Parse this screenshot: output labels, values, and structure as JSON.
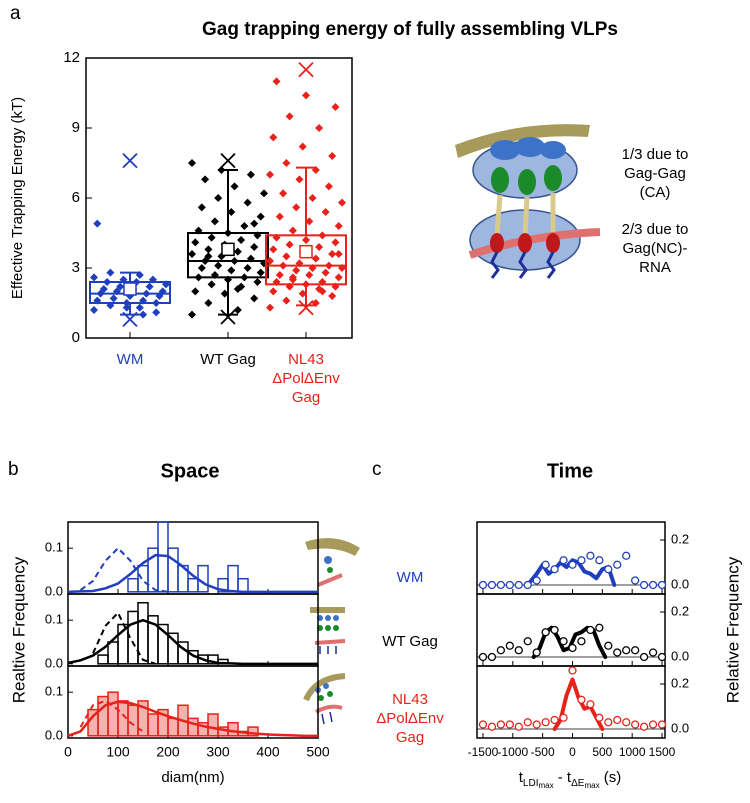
{
  "chart_data": [
    {
      "type": "box",
      "panel": "a",
      "title": "Gag trapping energy of fully assembling VLPs",
      "ylabel": "Effective Trapping Energy (kT)",
      "ylim": [
        0,
        12
      ],
      "yticks": [
        0,
        3,
        6,
        9,
        12
      ],
      "categories": [
        "WM",
        "WT Gag",
        "NL43\nΔPolΔEnv\nGag"
      ],
      "colors": [
        "#1f3fbf",
        "#000000",
        "#e8211a"
      ],
      "boxes": [
        {
          "whisker_low": 1.0,
          "q1": 1.5,
          "median": 1.9,
          "q3": 2.4,
          "whisker_high": 2.8,
          "mean": 2.1,
          "min": 0.8,
          "max": 7.6,
          "points": [
            1.2,
            1.3,
            1.4,
            1.5,
            1.5,
            1.6,
            1.6,
            1.7,
            1.8,
            1.8,
            1.9,
            1.9,
            2.0,
            2.0,
            2.1,
            2.1,
            2.2,
            2.2,
            2.3,
            2.4,
            2.4,
            2.5,
            2.5,
            2.6,
            2.7,
            2.8,
            1.1,
            1.3,
            4.9,
            1.0
          ]
        },
        {
          "whisker_low": 1.0,
          "q1": 2.6,
          "median": 3.3,
          "q3": 4.5,
          "whisker_high": 7.2,
          "mean": 3.8,
          "min": 0.9,
          "max": 7.6,
          "points": [
            1.0,
            1.2,
            1.5,
            1.7,
            1.9,
            2.0,
            2.2,
            2.3,
            2.4,
            2.5,
            2.6,
            2.6,
            2.7,
            2.8,
            2.9,
            3.0,
            3.0,
            3.1,
            3.2,
            3.3,
            3.3,
            3.4,
            3.5,
            3.6,
            3.7,
            3.8,
            3.9,
            4.0,
            4.1,
            4.2,
            4.3,
            4.4,
            4.5,
            4.6,
            4.8,
            5.0,
            5.2,
            5.4,
            5.6,
            5.8,
            6.0,
            6.2,
            6.5,
            6.8,
            7.0,
            7.2,
            7.5,
            2.1,
            3.5,
            4.9
          ]
        },
        {
          "whisker_low": 1.4,
          "q1": 2.3,
          "median": 3.1,
          "q3": 4.4,
          "whisker_high": 7.3,
          "mean": 3.7,
          "min": 1.3,
          "max": 11.5,
          "points": [
            1.3,
            1.5,
            1.6,
            1.8,
            1.9,
            2.0,
            2.1,
            2.2,
            2.2,
            2.3,
            2.4,
            2.4,
            2.5,
            2.6,
            2.7,
            2.7,
            2.8,
            2.9,
            3.0,
            3.0,
            3.1,
            3.1,
            3.2,
            3.3,
            3.4,
            3.5,
            3.6,
            3.7,
            3.8,
            3.9,
            4.0,
            4.1,
            4.2,
            4.3,
            4.4,
            4.6,
            4.8,
            5.0,
            5.2,
            5.4,
            5.6,
            5.8,
            6.0,
            6.2,
            6.5,
            6.8,
            7.0,
            7.2,
            7.5,
            7.8,
            8.2,
            8.6,
            9.0,
            9.5,
            9.9,
            10.4,
            11.0,
            2.0,
            2.6,
            3.6
          ]
        }
      ],
      "annotations": [
        "1/3 due to\nGag-Gag (CA)",
        "2/3 due to\nGag(NC)-RNA"
      ]
    },
    {
      "type": "histogram",
      "panel": "b",
      "title": "Space",
      "xlabel": "diam(nm)",
      "ylabel": "Realtive Frequency",
      "xlim": [
        0,
        500
      ],
      "xticks": [
        0,
        100,
        200,
        300,
        400,
        500
      ],
      "ylim": [
        -0.005,
        0.16
      ],
      "yticks": [
        {
          "value": 0,
          "label": "0.0"
        },
        {
          "value": 0.1,
          "label": "0.1"
        }
      ],
      "bins": [
        40,
        60,
        80,
        100,
        120,
        140,
        160,
        180,
        200,
        220,
        240,
        260,
        280,
        300,
        320,
        340,
        360,
        380
      ],
      "series": [
        {
          "name": "WM",
          "color": "#1f3fbf",
          "values": [
            0,
            0,
            0,
            0,
            0.03,
            0.06,
            0.1,
            0.16,
            0.1,
            0.06,
            0.03,
            0.06,
            0,
            0.03,
            0.06,
            0.03,
            0
          ],
          "fit": {
            "x": [
              0,
              25,
              50,
              75,
              100,
              125,
              150,
              175,
              200,
              225,
              250,
              275,
              300,
              325,
              350,
              375,
              400,
              425,
              450,
              475,
              500
            ],
            "values": [
              0,
              0.001,
              0.002,
              0.008,
              0.019,
              0.041,
              0.066,
              0.084,
              0.082,
              0.062,
              0.037,
              0.017,
              0.006,
              0.002,
              0,
              0,
              0,
              0,
              0,
              0,
              0
            ]
          },
          "dashed": {
            "x": [
              25,
              50,
              75,
              100,
              125,
              150,
              175,
              200
            ],
            "values": [
              0.004,
              0.025,
              0.071,
              0.1,
              0.071,
              0.025,
              0.004,
              0
            ]
          }
        },
        {
          "name": "WT Gag",
          "color": "#000000",
          "values": [
            0,
            0.02,
            0.05,
            0.09,
            0.12,
            0.14,
            0.11,
            0.09,
            0.07,
            0.05,
            0.03,
            0.02,
            0.02,
            0.01,
            0,
            0,
            0
          ],
          "fit": {
            "x": [
              0,
              25,
              50,
              75,
              100,
              125,
              150,
              175,
              200,
              225,
              250,
              275,
              300,
              325,
              350,
              375,
              400,
              425,
              450,
              475,
              500
            ],
            "values": [
              0.002,
              0.008,
              0.019,
              0.039,
              0.066,
              0.09,
              0.1,
              0.09,
              0.066,
              0.039,
              0.019,
              0.008,
              0.002,
              0.001,
              0,
              0,
              0,
              0,
              0,
              0,
              0
            ]
          },
          "dashed": {
            "x": [
              50,
              75,
              100,
              125,
              150,
              175
            ],
            "values": [
              0.024,
              0.087,
              0.117,
              0.058,
              0.009,
              0
            ]
          }
        },
        {
          "name": "NL43\nΔPolΔEnv\nGag",
          "color": "#e8211a",
          "values": [
            0.06,
            0.09,
            0.1,
            0.08,
            0.07,
            0.08,
            0.05,
            0.06,
            0.04,
            0.07,
            0.04,
            0.03,
            0.05,
            0.02,
            0.03,
            0.01,
            0.02
          ],
          "fit": {
            "x": [
              0,
              25,
              50,
              75,
              100,
              125,
              150,
              175,
              200,
              225,
              250,
              275,
              300,
              325,
              350,
              375,
              400,
              425,
              450,
              475,
              500
            ],
            "values": [
              0,
              0.01,
              0.045,
              0.07,
              0.078,
              0.075,
              0.066,
              0.055,
              0.045,
              0.036,
              0.028,
              0.021,
              0.016,
              0.011,
              0.008,
              0.005,
              0.003,
              0.002,
              0.001,
              0,
              0
            ]
          },
          "dashed": {
            "x": [
              25,
              50,
              75,
              100,
              125,
              150
            ],
            "values": [
              0.02,
              0.07,
              0.08,
              0.06,
              0.03,
              0.01
            ]
          }
        }
      ]
    },
    {
      "type": "line",
      "panel": "c",
      "title": "Time",
      "xlabel": [
        "t",
        "LDI",
        "max",
        " - t",
        "ΔE",
        "max",
        " (s)"
      ],
      "ylabel": "Relative Frequency",
      "xlim": [
        -1600,
        1550
      ],
      "xticks": [
        -1500,
        -1000,
        -500,
        0,
        500,
        1000,
        1500
      ],
      "ylim": [
        -0.04,
        0.28
      ],
      "yticks": [
        {
          "value": 0,
          "label": "0.0"
        },
        {
          "value": 0.2,
          "label": "0.2"
        }
      ],
      "x": [
        -1500,
        -1350,
        -1200,
        -1050,
        -900,
        -750,
        -600,
        -450,
        -300,
        -150,
        0,
        150,
        300,
        450,
        600,
        750,
        900,
        1050,
        1200,
        1350,
        1500
      ],
      "series": [
        {
          "color": "#1f3fbf",
          "values": [
            0,
            0,
            0,
            0,
            0,
            0,
            0.02,
            0.09,
            0.07,
            0.11,
            0.09,
            0.11,
            0.13,
            0.11,
            0.07,
            0.09,
            0.13,
            0.02,
            0,
            0,
            0
          ],
          "fit": {
            "x": [
              -750,
              -600,
              -500,
              -400,
              -300,
              -200,
              -100,
              0,
              100,
              200,
              300,
              400,
              500,
              600,
              700
            ],
            "values": [
              0,
              0.05,
              0.09,
              0.05,
              0.07,
              0.1,
              0.08,
              0.11,
              0.1,
              0.06,
              0.05,
              0.03,
              0.07,
              0.08,
              0
            ]
          }
        },
        {
          "color": "#000000",
          "values": [
            0,
            0,
            0.03,
            0.05,
            0.03,
            0.07,
            0.02,
            0.11,
            0.12,
            0.07,
            0.04,
            0.07,
            0.12,
            0.13,
            0.05,
            0.02,
            0.03,
            0.03,
            0,
            0.02,
            0
          ],
          "fit": {
            "x": [
              -650,
              -550,
              -450,
              -350,
              -250,
              -150,
              -50,
              50,
              150,
              250,
              350,
              450,
              550
            ],
            "values": [
              0,
              0.04,
              0.11,
              0.13,
              0.09,
              0.03,
              0.04,
              0.1,
              0.11,
              0.13,
              0.12,
              0.05,
              0
            ]
          }
        },
        {
          "color": "#e8211a",
          "values": [
            0.02,
            0.01,
            0.02,
            0.02,
            0.01,
            0.03,
            0.02,
            0.03,
            0.04,
            0.05,
            0.26,
            0.13,
            0.11,
            0.05,
            0.03,
            0.04,
            0.03,
            0.02,
            0.01,
            0.02,
            0.02
          ],
          "fit": {
            "x": [
              -300,
              -200,
              -100,
              0,
              100,
              200,
              300,
              400,
              500
            ],
            "values": [
              0,
              0.04,
              0.15,
              0.22,
              0.14,
              0.09,
              0.1,
              0.05,
              0
            ]
          }
        }
      ]
    }
  ]
}
